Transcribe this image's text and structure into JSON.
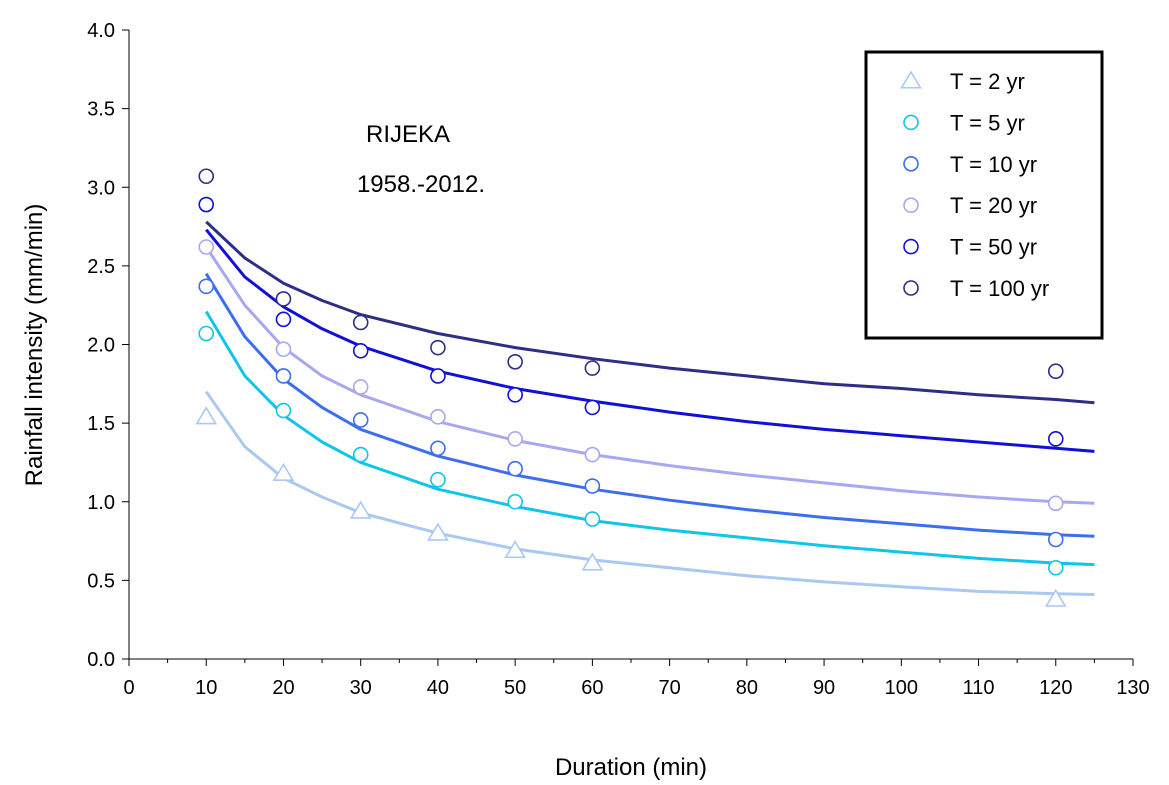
{
  "chart_data": {
    "type": "scatter",
    "title": "",
    "annotation": [
      "RIJEKA",
      "1958.-2012."
    ],
    "xlabel": "Duration (min)",
    "ylabel": "Rainfall intensity (mm/min)",
    "xlim": [
      0,
      130
    ],
    "ylim": [
      0,
      4.0
    ],
    "xticks": [
      0,
      10,
      20,
      30,
      40,
      50,
      60,
      70,
      80,
      90,
      100,
      110,
      120,
      130
    ],
    "yticks": [
      "0.0",
      "0.5",
      "1.0",
      "1.5",
      "2.0",
      "2.5",
      "3.0",
      "3.5",
      "4.0"
    ],
    "grid": false,
    "legend_position": "top-right",
    "series": [
      {
        "name": "T = 2 yr",
        "marker": "triangle",
        "color": "#a9c9f2",
        "points": [
          [
            10,
            1.54
          ],
          [
            20,
            1.18
          ],
          [
            30,
            0.94
          ],
          [
            40,
            0.8
          ],
          [
            50,
            0.69
          ],
          [
            60,
            0.61
          ],
          [
            120,
            0.38
          ]
        ],
        "fit": [
          [
            10,
            1.7
          ],
          [
            15,
            1.35
          ],
          [
            20,
            1.15
          ],
          [
            25,
            1.03
          ],
          [
            30,
            0.93
          ],
          [
            40,
            0.8
          ],
          [
            50,
            0.7
          ],
          [
            60,
            0.63
          ],
          [
            70,
            0.58
          ],
          [
            80,
            0.53
          ],
          [
            90,
            0.49
          ],
          [
            100,
            0.46
          ],
          [
            110,
            0.43
          ],
          [
            120,
            0.415
          ],
          [
            125,
            0.41
          ]
        ]
      },
      {
        "name": "T = 5 yr",
        "marker": "circle",
        "color": "#11c5e8",
        "points": [
          [
            10,
            2.07
          ],
          [
            20,
            1.58
          ],
          [
            30,
            1.3
          ],
          [
            40,
            1.14
          ],
          [
            50,
            1.0
          ],
          [
            60,
            0.89
          ],
          [
            120,
            0.58
          ]
        ],
        "fit": [
          [
            10,
            2.21
          ],
          [
            15,
            1.8
          ],
          [
            20,
            1.55
          ],
          [
            25,
            1.38
          ],
          [
            30,
            1.25
          ],
          [
            40,
            1.08
          ],
          [
            50,
            0.97
          ],
          [
            60,
            0.88
          ],
          [
            70,
            0.82
          ],
          [
            80,
            0.77
          ],
          [
            90,
            0.72
          ],
          [
            100,
            0.68
          ],
          [
            110,
            0.64
          ],
          [
            120,
            0.61
          ],
          [
            125,
            0.6
          ]
        ]
      },
      {
        "name": "T = 10 yr",
        "marker": "circle",
        "color": "#3d6ef0",
        "points": [
          [
            10,
            2.37
          ],
          [
            20,
            1.8
          ],
          [
            30,
            1.52
          ],
          [
            40,
            1.34
          ],
          [
            50,
            1.21
          ],
          [
            60,
            1.1
          ],
          [
            120,
            0.76
          ]
        ],
        "fit": [
          [
            10,
            2.45
          ],
          [
            15,
            2.05
          ],
          [
            20,
            1.78
          ],
          [
            25,
            1.6
          ],
          [
            30,
            1.46
          ],
          [
            40,
            1.29
          ],
          [
            50,
            1.17
          ],
          [
            60,
            1.08
          ],
          [
            70,
            1.01
          ],
          [
            80,
            0.95
          ],
          [
            90,
            0.9
          ],
          [
            100,
            0.86
          ],
          [
            110,
            0.82
          ],
          [
            120,
            0.79
          ],
          [
            125,
            0.78
          ]
        ]
      },
      {
        "name": "T = 20 yr",
        "marker": "circle",
        "color": "#a7a8f1",
        "points": [
          [
            10,
            2.62
          ],
          [
            20,
            1.97
          ],
          [
            30,
            1.73
          ],
          [
            40,
            1.54
          ],
          [
            50,
            1.4
          ],
          [
            60,
            1.3
          ],
          [
            120,
            0.99
          ]
        ],
        "fit": [
          [
            10,
            2.62
          ],
          [
            15,
            2.25
          ],
          [
            20,
            1.98
          ],
          [
            25,
            1.8
          ],
          [
            30,
            1.68
          ],
          [
            40,
            1.51
          ],
          [
            50,
            1.39
          ],
          [
            60,
            1.3
          ],
          [
            70,
            1.23
          ],
          [
            80,
            1.17
          ],
          [
            90,
            1.12
          ],
          [
            100,
            1.07
          ],
          [
            110,
            1.03
          ],
          [
            120,
            1.0
          ],
          [
            125,
            0.99
          ]
        ]
      },
      {
        "name": "T = 50 yr",
        "marker": "circle",
        "color": "#1010d6",
        "points": [
          [
            10,
            2.89
          ],
          [
            20,
            2.16
          ],
          [
            30,
            1.96
          ],
          [
            40,
            1.8
          ],
          [
            50,
            1.68
          ],
          [
            60,
            1.6
          ],
          [
            120,
            1.4
          ]
        ],
        "fit": [
          [
            10,
            2.73
          ],
          [
            15,
            2.43
          ],
          [
            20,
            2.24
          ],
          [
            25,
            2.1
          ],
          [
            30,
            1.99
          ],
          [
            40,
            1.83
          ],
          [
            50,
            1.72
          ],
          [
            60,
            1.64
          ],
          [
            70,
            1.57
          ],
          [
            80,
            1.51
          ],
          [
            90,
            1.46
          ],
          [
            100,
            1.42
          ],
          [
            110,
            1.38
          ],
          [
            120,
            1.34
          ],
          [
            125,
            1.32
          ]
        ]
      },
      {
        "name": "T = 100 yr",
        "marker": "circle",
        "color": "#2e2e86",
        "points": [
          [
            10,
            3.07
          ],
          [
            20,
            2.29
          ],
          [
            30,
            2.14
          ],
          [
            40,
            1.98
          ],
          [
            50,
            1.89
          ],
          [
            60,
            1.85
          ],
          [
            120,
            1.83
          ]
        ],
        "fit": [
          [
            10,
            2.78
          ],
          [
            15,
            2.55
          ],
          [
            20,
            2.39
          ],
          [
            25,
            2.28
          ],
          [
            30,
            2.19
          ],
          [
            40,
            2.07
          ],
          [
            50,
            1.98
          ],
          [
            60,
            1.91
          ],
          [
            70,
            1.85
          ],
          [
            80,
            1.8
          ],
          [
            90,
            1.75
          ],
          [
            100,
            1.72
          ],
          [
            110,
            1.68
          ],
          [
            120,
            1.65
          ],
          [
            125,
            1.63
          ]
        ]
      }
    ]
  }
}
